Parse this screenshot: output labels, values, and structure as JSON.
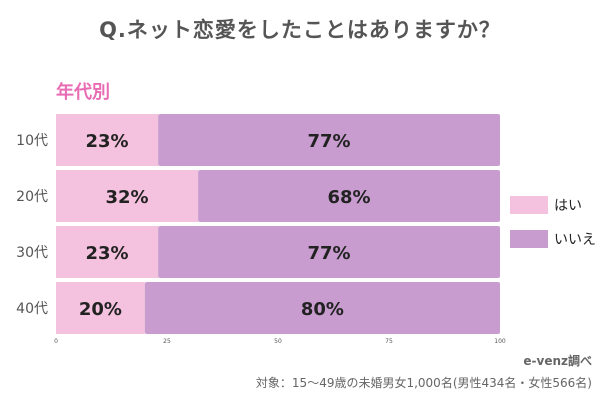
{
  "title": "Q.ネット恋愛をしたことはありますか？",
  "subtitle": "年代別",
  "source": "e-venz調べ",
  "note": "対象：15〜49歳の未婚男女1,000名(男性434名・女性566名)",
  "colors": {
    "yes": "#f4c2de",
    "no": "#c89ccf",
    "text": "#222222",
    "axis": "#555555"
  },
  "chart_data": {
    "type": "bar",
    "orientation": "horizontal",
    "stacked": true,
    "categories": [
      "10代",
      "20代",
      "30代",
      "40代"
    ],
    "series": [
      {
        "name": "はい",
        "values": [
          23,
          32,
          23,
          20
        ],
        "labels": [
          "23%",
          "32%",
          "23%",
          "20%"
        ]
      },
      {
        "name": "いいえ",
        "values": [
          77,
          68,
          77,
          80
        ],
        "labels": [
          "77%",
          "68%",
          "77%",
          "80%"
        ]
      }
    ],
    "xlim": [
      0,
      100
    ],
    "xticks": [
      0,
      25,
      50,
      75,
      100
    ],
    "tick_labels": [
      "0",
      "25",
      "50",
      "75",
      "100"
    ],
    "legend": "right"
  }
}
